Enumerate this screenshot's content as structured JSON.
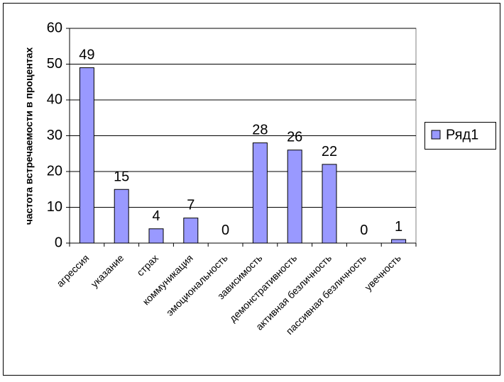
{
  "chart_data": {
    "type": "bar",
    "y_label": "частота встречаемости в процентах",
    "categories": [
      "агрессия",
      "указание",
      "страх",
      "коммуникация",
      "эмоциональность",
      "зависимость",
      "демонстративность",
      "активная безличность",
      "пассивная безличность",
      "увечность"
    ],
    "series": [
      {
        "name": "Ряд1",
        "color": "#9999ff",
        "values": [
          49,
          15,
          4,
          7,
          0,
          28,
          26,
          22,
          0,
          1
        ]
      }
    ],
    "ylim": [
      0,
      60
    ],
    "yticks": [
      0,
      10,
      20,
      30,
      40,
      50,
      60
    ],
    "grid": true,
    "legend": "right",
    "data_labels": true
  }
}
